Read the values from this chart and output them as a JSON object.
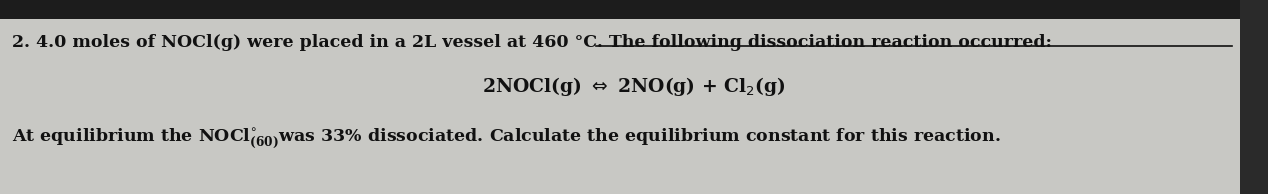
{
  "background_color": "#c8c8c4",
  "top_bar_color": "#1a1a1a",
  "text_color": "#111111",
  "line1_prefix": "2. 4.0 moles of NOCl(g) were placed in a 2L vessel at 460 °C. The following dissociation reaction occurred:",
  "line2": "2NOCl(g) ⇔ 2NO(g) + Cl₂(g)",
  "line3": "At equilibrium the NOCl",
  "line3_sub": "(60)",
  "line3_deg": "°",
  "line3_end": "was 33% dissociated. Calculate the equilibrium constant for this reaction.",
  "font_size_main": 12.5,
  "font_size_eq": 13.5,
  "underline_color": "#111111"
}
